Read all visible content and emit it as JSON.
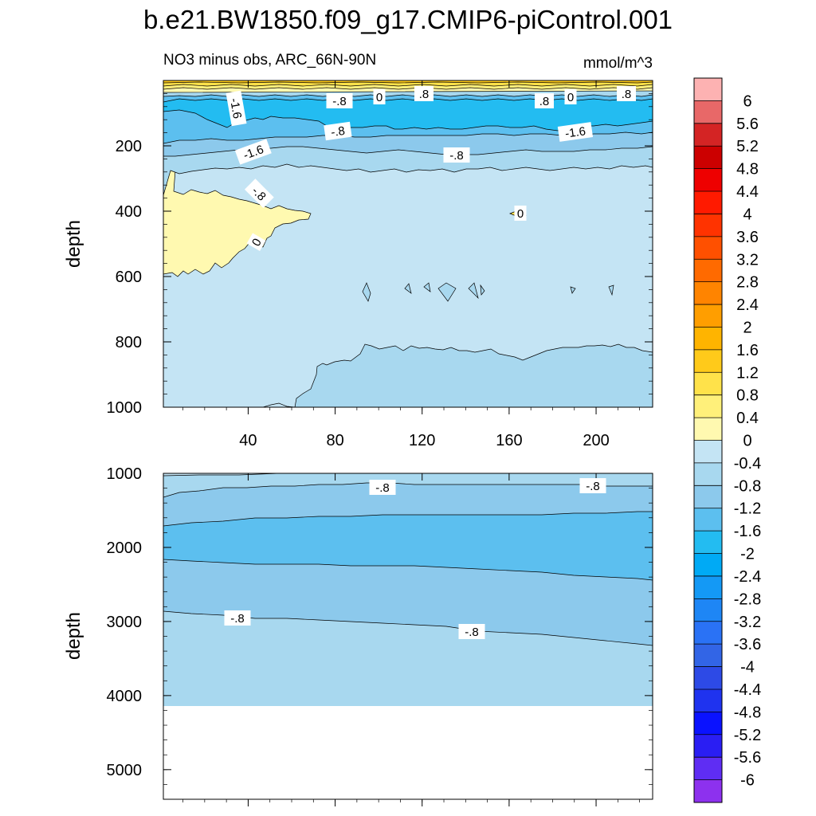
{
  "page": {
    "title": "b.e21.BW1850.f09_g17.CMIP6-piControl.001",
    "subtitle_left": "NO3 minus obs, ARC_66N-90N",
    "subtitle_right": "mmol/m^3"
  },
  "chart_data": {
    "type": "contour",
    "variable": "NO3 minus obs",
    "region": "ARC_66N-90N",
    "units": "mmol/m^3",
    "x_ticks": [
      40,
      80,
      120,
      160,
      200
    ],
    "x_range": [
      1,
      226
    ],
    "colorbar": {
      "levels": [
        "6",
        "5.6",
        "5.2",
        "4.8",
        "4.4",
        "4",
        "3.6",
        "3.2",
        "2.8",
        "2.4",
        "2",
        "1.6",
        "1.2",
        "0.8",
        "0.4",
        "0",
        "-0.4",
        "-0.8",
        "-1.2",
        "-1.6",
        "-2",
        "-2.4",
        "-2.8",
        "-3.2",
        "-3.6",
        "-4",
        "-4.4",
        "-4.8",
        "-5.2",
        "-5.6",
        "-6"
      ],
      "colors": [
        "#fdb2b2",
        "#e86868",
        "#d42424",
        "#cc0000",
        "#ee0000",
        "#ff1a00",
        "#ff3300",
        "#ff5000",
        "#ff6a00",
        "#ff8400",
        "#ff9e00",
        "#ffb400",
        "#ffca1a",
        "#ffe24a",
        "#fff07a",
        "#fff9b0",
        "#c4e4f4",
        "#a8d8ef",
        "#8cc9ec",
        "#5cbfef",
        "#23bcf1",
        "#00aaf5",
        "#1499f5",
        "#1e86f5",
        "#2a72f5",
        "#3265e6",
        "#2d4ae6",
        "#1f33ef",
        "#0a12ff",
        "#2a1ef3",
        "#5f2df3",
        "#8d31ee"
      ]
    },
    "panels": [
      {
        "name": "upper",
        "ylabel": "depth",
        "y_ticks": [
          200,
          400,
          600,
          800,
          1000
        ],
        "y_range": [
          0,
          1000
        ],
        "contour_labels": [
          "-1.6",
          ".8",
          "0",
          ".8",
          "-.8",
          "0",
          ".8",
          "-.8",
          "-1.6",
          "-1.6",
          "-.8",
          "-.8",
          "0",
          "0"
        ]
      },
      {
        "name": "lower",
        "ylabel": "depth",
        "y_ticks": [
          1000,
          2000,
          3000,
          4000,
          5000
        ],
        "y_range": [
          1000,
          5400
        ],
        "contour_labels": [
          "-.8",
          "-.8",
          "-.8",
          "-.8"
        ]
      }
    ]
  }
}
